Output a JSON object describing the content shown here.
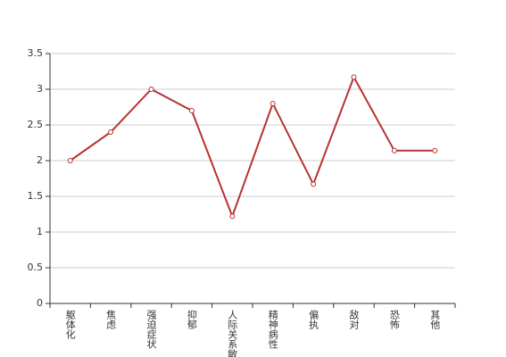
{
  "chart_data": {
    "type": "line",
    "categories": [
      "躯体化",
      "焦虑",
      "强迫症状",
      "抑郁",
      "人际关系敏感",
      "精神病性",
      "偏执",
      "敌对",
      "恐怖",
      "其他"
    ],
    "values": [
      2.0,
      2.4,
      3.0,
      2.7,
      1.22,
      2.8,
      1.67,
      3.17,
      2.14,
      2.14
    ],
    "color": "#b83232",
    "ylim": [
      0,
      3.5
    ],
    "yticks": [
      0,
      0.5,
      1,
      1.5,
      2,
      2.5,
      3,
      3.5
    ],
    "grid": true
  }
}
